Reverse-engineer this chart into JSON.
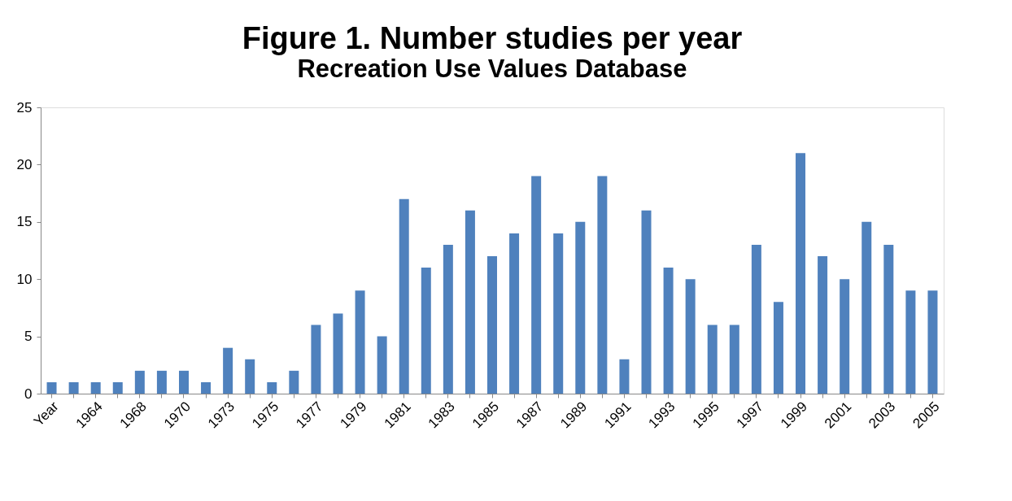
{
  "chart_data": {
    "type": "bar",
    "title": "Figure 1. Number studies per year",
    "subtitle": "Recreation Use Values Database",
    "categories": [
      "Year",
      null,
      "1964",
      null,
      "1968",
      null,
      "1970",
      null,
      "1973",
      null,
      "1975",
      null,
      "1977",
      null,
      "1979",
      null,
      "1981",
      null,
      "1983",
      null,
      "1985",
      null,
      "1987",
      null,
      "1989",
      null,
      "1991",
      null,
      "1993",
      null,
      "1995",
      null,
      "1997",
      null,
      "1999",
      null,
      "2001",
      null,
      "2003",
      null,
      "2005"
    ],
    "values": [
      1,
      1,
      1,
      1,
      2,
      2,
      2,
      1,
      4,
      3,
      1,
      2,
      6,
      7,
      9,
      5,
      17,
      11,
      13,
      16,
      12,
      14,
      19,
      14,
      15,
      19,
      3,
      16,
      11,
      10,
      6,
      6,
      13,
      8,
      21,
      12,
      10,
      15,
      13,
      9,
      9
    ],
    "color": "#4f81bd",
    "ylim": [
      0,
      25
    ],
    "yticks": [
      0,
      5,
      10,
      15,
      20,
      25
    ],
    "grid": false
  }
}
